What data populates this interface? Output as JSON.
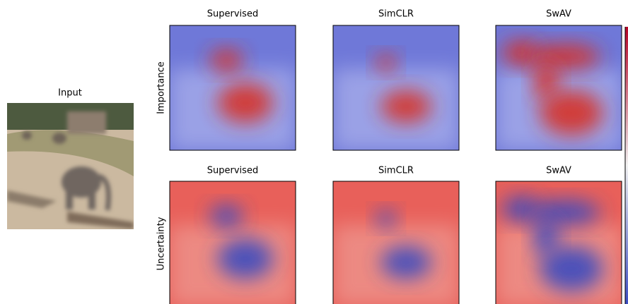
{
  "input": {
    "title": "Input"
  },
  "rows": [
    {
      "label": "Importance",
      "panels": [
        "Supervised",
        "SimCLR",
        "SwAV"
      ]
    },
    {
      "label": "Uncertainty",
      "panels": [
        "Supervised",
        "SimCLR",
        "SwAV"
      ]
    }
  ]
}
